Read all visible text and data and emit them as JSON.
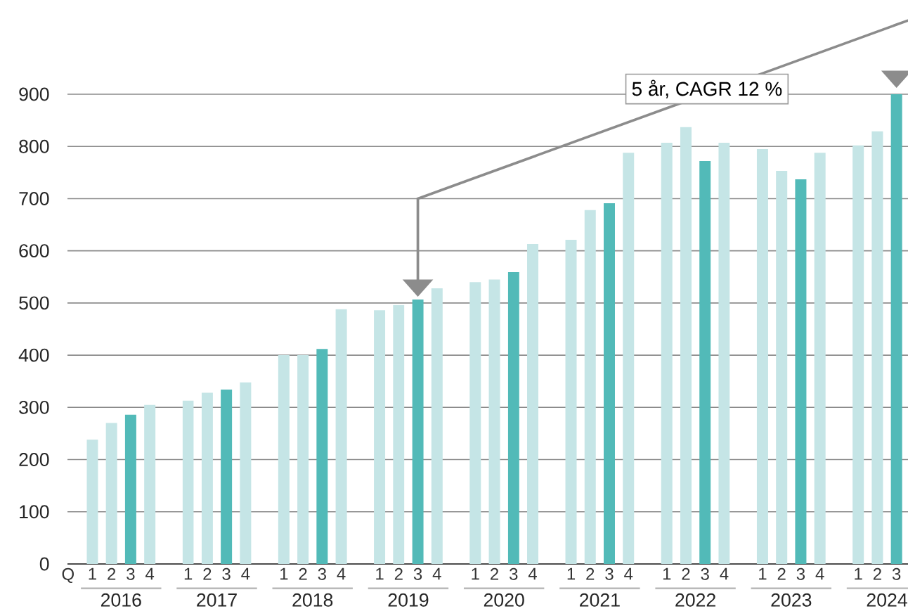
{
  "chart_data": {
    "type": "bar",
    "xlabel": "Q",
    "categories": [
      "1",
      "2",
      "3",
      "4",
      "1",
      "2",
      "3",
      "4",
      "1",
      "2",
      "3",
      "4",
      "1",
      "2",
      "3",
      "4",
      "1",
      "2",
      "3",
      "4",
      "1",
      "2",
      "3",
      "4",
      "1",
      "2",
      "3",
      "4",
      "1",
      "2",
      "3",
      "4",
      "1",
      "2",
      "3"
    ],
    "values": [
      238,
      270,
      286,
      305,
      313,
      328,
      334,
      348,
      400,
      400,
      412,
      488,
      486,
      496,
      507,
      528,
      540,
      545,
      559,
      613,
      621,
      678,
      691,
      788,
      807,
      837,
      772,
      807,
      795,
      753,
      737,
      788,
      802,
      829,
      900
    ],
    "colors": [
      "#c5e5e6",
      "#c5e5e6",
      "#52bab8",
      "#c5e5e6",
      "#c5e5e6",
      "#c5e5e6",
      "#52bab8",
      "#c5e5e6",
      "#c5e5e6",
      "#c5e5e6",
      "#52bab8",
      "#c5e5e6",
      "#c5e5e6",
      "#c5e5e6",
      "#52bab8",
      "#c5e5e6",
      "#c5e5e6",
      "#c5e5e6",
      "#52bab8",
      "#c5e5e6",
      "#c5e5e6",
      "#c5e5e6",
      "#52bab8",
      "#c5e5e6",
      "#c5e5e6",
      "#c5e5e6",
      "#52bab8",
      "#c5e5e6",
      "#c5e5e6",
      "#c5e5e6",
      "#52bab8",
      "#c5e5e6",
      "#c5e5e6",
      "#c5e5e6",
      "#52bab8"
    ],
    "ylim": [
      0,
      900
    ],
    "yticks": [
      0,
      100,
      200,
      300,
      400,
      500,
      600,
      700,
      800,
      900
    ],
    "grid": "y",
    "annotations": [
      "5 år, CAGR 12 %",
      "2016",
      "2017",
      "2018",
      "2019",
      "2020",
      "2021",
      "2022",
      "2023",
      "2024"
    ]
  }
}
